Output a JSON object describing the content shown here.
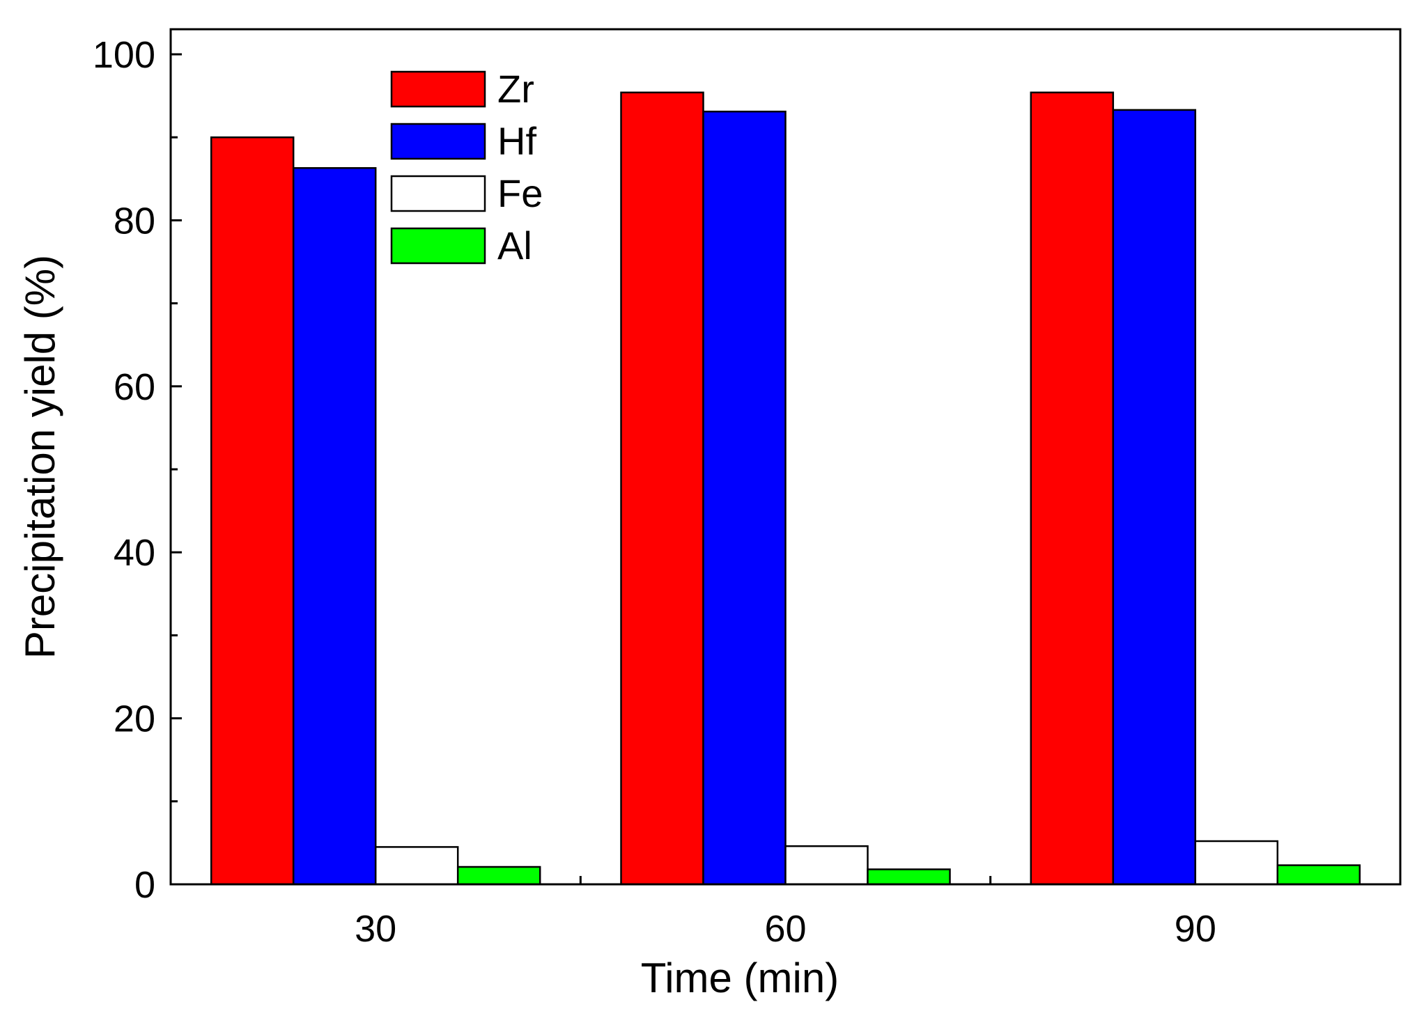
{
  "chart_data": {
    "type": "bar",
    "title": "",
    "xlabel": "Time (min)",
    "ylabel": "Precipitation yield (%)",
    "categories": [
      "30",
      "60",
      "90"
    ],
    "ylim": [
      0,
      100
    ],
    "yticks": [
      "0",
      "20",
      "40",
      "60",
      "80",
      "100"
    ],
    "grid": false,
    "legend_position": "top-left",
    "series": [
      {
        "name": "Zr",
        "color": "#ff0000",
        "values": [
          90.0,
          95.4,
          95.4
        ]
      },
      {
        "name": "Hf",
        "color": "#0000ff",
        "values": [
          86.3,
          93.1,
          93.3
        ]
      },
      {
        "name": "Fe",
        "color": "#ffffff",
        "values": [
          4.5,
          4.6,
          5.2
        ]
      },
      {
        "name": "Al",
        "color": "#00ff00",
        "values": [
          2.1,
          1.8,
          2.3
        ]
      }
    ]
  }
}
